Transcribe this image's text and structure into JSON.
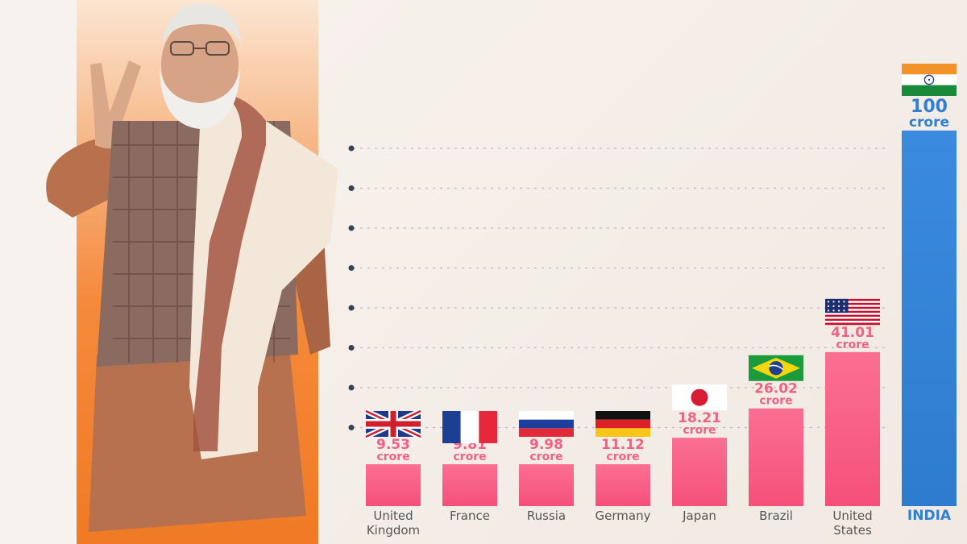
{
  "chart_data": {
    "type": "bar",
    "unit_label": "crore",
    "categories": [
      {
        "key": "uk",
        "lines": [
          "United",
          "Kingdom"
        ],
        "value": 9.53,
        "value_label": "9.53",
        "flag": "uk-flag-icon"
      },
      {
        "key": "france",
        "lines": [
          "France"
        ],
        "value": 9.81,
        "value_label": "9.81",
        "flag": "france-flag-icon"
      },
      {
        "key": "russia",
        "lines": [
          "Russia"
        ],
        "value": 9.98,
        "value_label": "9.98",
        "flag": "russia-flag-icon"
      },
      {
        "key": "germany",
        "lines": [
          "Germany"
        ],
        "value": 11.12,
        "value_label": "11.12",
        "flag": "germany-flag-icon"
      },
      {
        "key": "japan",
        "lines": [
          "Japan"
        ],
        "value": 18.21,
        "value_label": "18.21",
        "flag": "japan-flag-icon"
      },
      {
        "key": "brazil",
        "lines": [
          "Brazil"
        ],
        "value": 26.02,
        "value_label": "26.02",
        "flag": "brazil-flag-icon"
      },
      {
        "key": "us",
        "lines": [
          "United",
          "States"
        ],
        "value": 41.01,
        "value_label": "41.01",
        "flag": "us-flag-icon"
      },
      {
        "key": "india",
        "lines": [
          "INDIA"
        ],
        "value": 100,
        "value_label": "100",
        "flag": "india-flag-icon",
        "highlight": true
      }
    ],
    "grid": true,
    "colors": {
      "bar": "#f5507a",
      "bar_top": "#fb6f93",
      "value_text": "#f06283",
      "highlight_bar": "#2d7ccf",
      "highlight_text": "#2f7fd3",
      "label_text": "#555555"
    }
  },
  "photo": {
    "name": "portrait-photo"
  }
}
